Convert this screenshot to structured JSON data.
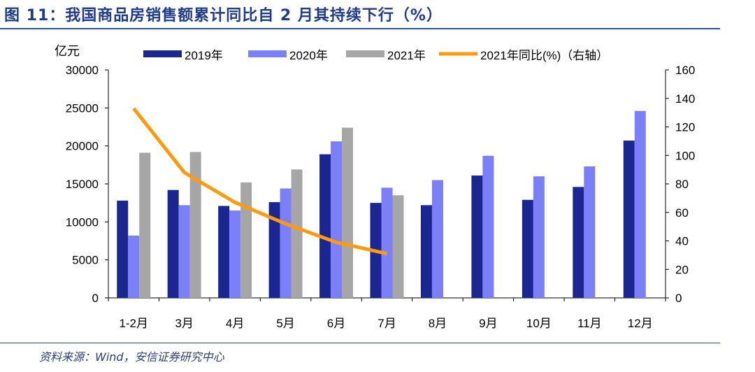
{
  "figure": {
    "title": "图 11：我国商品房销售额累计同比自 2 月其持续下行（%）",
    "source": "资料来源：Wind，安信证券研究中心"
  },
  "colors": {
    "2019": "#1b2690",
    "2020": "#7b7ff8",
    "2021": "#a6a6a6",
    "yoy": "#ff9a0d",
    "accent": "#1f3b8c"
  },
  "chart_data": {
    "type": "bar",
    "categories": [
      "1-2月",
      "3月",
      "4月",
      "5月",
      "6月",
      "7月",
      "8月",
      "9月",
      "10月",
      "11月",
      "12月"
    ],
    "series": [
      {
        "name": "2019年",
        "type": "bar",
        "axis": "left",
        "values": [
          12800,
          14200,
          12100,
          12600,
          18900,
          12500,
          12200,
          16100,
          12900,
          14600,
          20700
        ]
      },
      {
        "name": "2020年",
        "type": "bar",
        "axis": "left",
        "values": [
          8200,
          12200,
          11500,
          14400,
          20600,
          14500,
          15500,
          18700,
          16000,
          17300,
          24600
        ]
      },
      {
        "name": "2021年",
        "type": "bar",
        "axis": "left",
        "values": [
          19100,
          19200,
          15200,
          16900,
          22400,
          13500,
          null,
          null,
          null,
          null,
          null
        ]
      },
      {
        "name": "2021年同比(%)（右轴）",
        "type": "line",
        "axis": "right",
        "values": [
          133,
          88,
          67,
          52,
          39,
          31,
          null,
          null,
          null,
          null,
          null
        ]
      }
    ],
    "ylabel": "亿元",
    "ylim": [
      0,
      30000
    ],
    "yticks": [
      "0",
      "5000",
      "10000",
      "15000",
      "20000",
      "25000",
      "30000"
    ],
    "y2lim": [
      0,
      160
    ],
    "y2ticks": [
      "0",
      "20",
      "40",
      "60",
      "80",
      "100",
      "120",
      "140",
      "160"
    ],
    "grid": false,
    "legend_position": "top"
  }
}
